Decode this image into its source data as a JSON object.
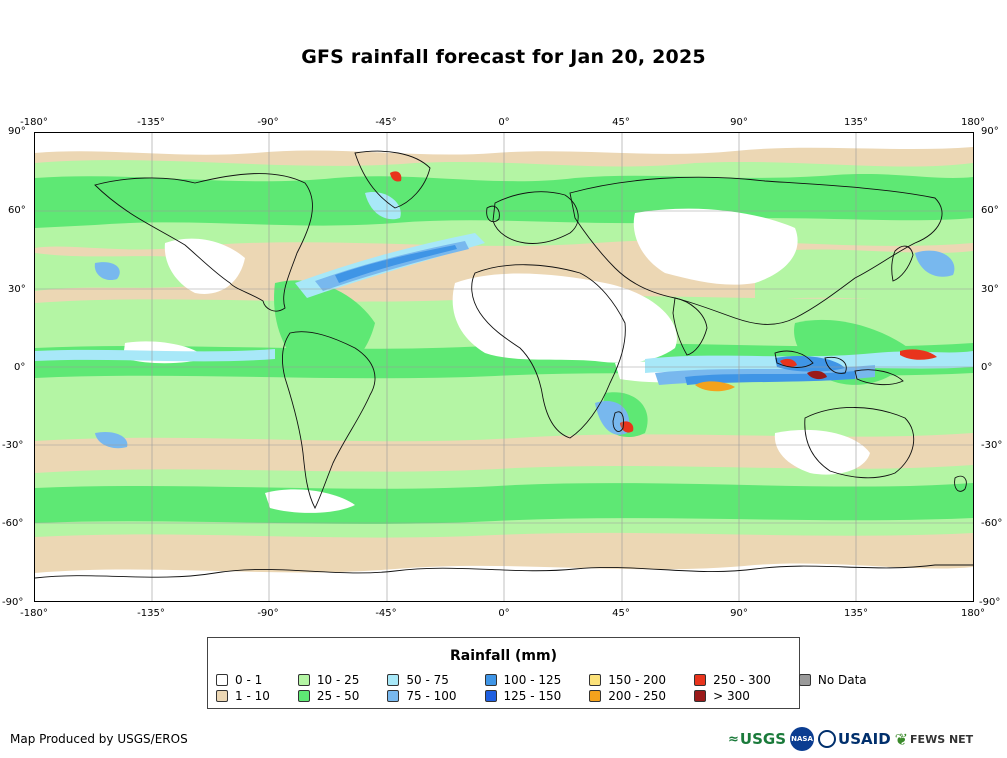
{
  "title": "GFS rainfall forecast for Jan 20, 2025",
  "map": {
    "projection": "equirectangular",
    "lon_ticks": [
      "-180°",
      "-135°",
      "-90°",
      "-45°",
      "0°",
      "45°",
      "90°",
      "135°",
      "180°"
    ],
    "lat_ticks": [
      "90°",
      "60°",
      "30°",
      "0°",
      "-30°",
      "-60°",
      "-90°"
    ]
  },
  "legend": {
    "title": "Rainfall (mm)",
    "items": [
      {
        "label": "0 - 1",
        "color": "#ffffff"
      },
      {
        "label": "1 - 10",
        "color": "#ecd7b4"
      },
      {
        "label": "10 - 25",
        "color": "#b4f5a4"
      },
      {
        "label": "25 - 50",
        "color": "#5ee874"
      },
      {
        "label": "50 - 75",
        "color": "#a8e8f8"
      },
      {
        "label": "75 - 100",
        "color": "#78b8ee"
      },
      {
        "label": "100 - 125",
        "color": "#3f95e6"
      },
      {
        "label": "125 - 150",
        "color": "#1f5fe0"
      },
      {
        "label": "150 - 200",
        "color": "#fce27a"
      },
      {
        "label": "200 - 250",
        "color": "#f4a21c"
      },
      {
        "label": "250 - 300",
        "color": "#e8341c"
      },
      {
        "label": "> 300",
        "color": "#9a1a1a"
      },
      {
        "label": "No Data",
        "color": "#9a9a9a"
      }
    ]
  },
  "credit": "Map Produced by USGS/EROS",
  "logos": {
    "usgs": "USGS",
    "nasa": "NASA",
    "usaid": "USAID",
    "fews": "FEWS NET"
  }
}
